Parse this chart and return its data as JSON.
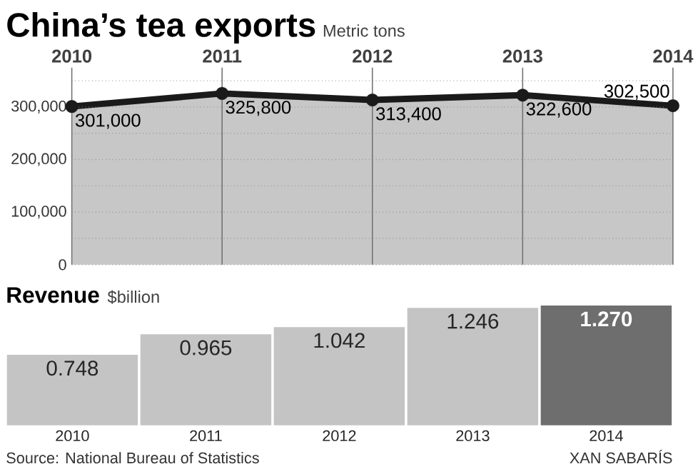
{
  "chart_data": [
    {
      "type": "area",
      "title": "China’s tea exports",
      "subtitle": "Metric tons",
      "x": [
        2010,
        2011,
        2012,
        2013,
        2014
      ],
      "series": [
        {
          "color": "#1a1a1a",
          "values": [
            301000,
            325800,
            313400,
            322600,
            302500
          ],
          "value_labels": [
            "301,000",
            "325,800",
            "313,400",
            "322,600",
            "302,500"
          ]
        }
      ],
      "xlim": [
        2010,
        2014
      ],
      "xticks": [
        2010,
        2011,
        2012,
        2013,
        2014
      ],
      "ylim": [
        0,
        375000
      ],
      "yticks": [
        0,
        {
          "value": 50000,
          "label": null
        },
        {
          "value": 100000,
          "label": "100,000"
        },
        {
          "value": 150000,
          "label": null
        },
        {
          "value": 200000,
          "label": "200,000"
        },
        {
          "value": 250000,
          "label": null
        },
        {
          "value": 300000,
          "label": "300,000"
        },
        {
          "value": 350000,
          "label": null
        }
      ],
      "grid": true,
      "marker": "circle"
    },
    {
      "type": "bar",
      "title": "Revenue",
      "subtitle": "$billion",
      "categories": [
        "2010",
        "2011",
        "2012",
        "2013",
        "2014"
      ],
      "values": [
        0.748,
        0.965,
        1.042,
        1.246,
        1.27
      ],
      "value_labels": [
        "0.748",
        "0.965",
        "1.042",
        "1.246",
        "1.270"
      ],
      "colors": [
        "#c4c4c4",
        "#c4c4c4",
        "#c4c4c4",
        "#c4c4c4",
        "#6e6e6e"
      ],
      "annotations": [
        "Source: National Bureau of Statistics",
        "XAN SABARÍS"
      ]
    }
  ]
}
